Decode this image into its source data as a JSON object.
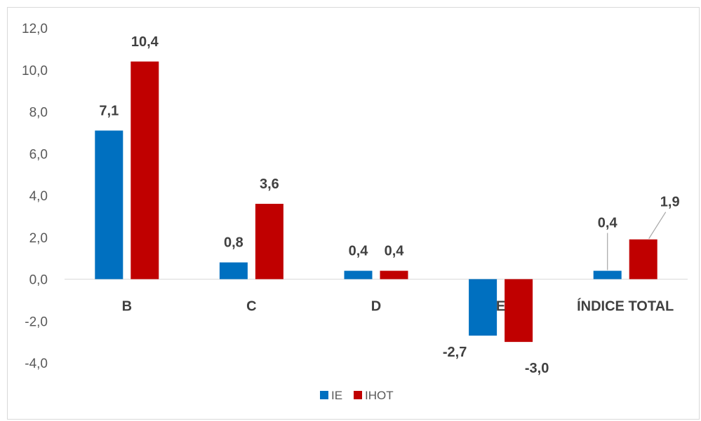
{
  "chart_data": {
    "type": "bar",
    "title": "",
    "xlabel": "",
    "ylabel": "",
    "categories": [
      "B",
      "C",
      "D",
      "E",
      "ÍNDICE TOTAL"
    ],
    "series": [
      {
        "name": "IE",
        "color": "#0070c0",
        "values": [
          7.1,
          0.8,
          0.4,
          -2.7,
          0.4
        ],
        "labels": [
          "7,1",
          "0,8",
          "0,4",
          "-2,7",
          "0,4"
        ]
      },
      {
        "name": "IHOT",
        "color": "#c00000",
        "values": [
          10.4,
          3.6,
          0.4,
          -3.0,
          1.9
        ],
        "labels": [
          "10,4",
          "3,6",
          "0,4",
          "-3,0",
          "1,9"
        ]
      }
    ],
    "ylim": [
      -4.0,
      12.0
    ],
    "yticks": [
      -4.0,
      -2.0,
      0.0,
      2.0,
      4.0,
      6.0,
      8.0,
      10.0,
      12.0
    ],
    "ytick_labels": [
      "-4,0",
      "-2,0",
      "0,0",
      "2,0",
      "4,0",
      "6,0",
      "8,0",
      "10,0",
      "12,0"
    ],
    "grid": false,
    "legend": "bottom-center"
  }
}
